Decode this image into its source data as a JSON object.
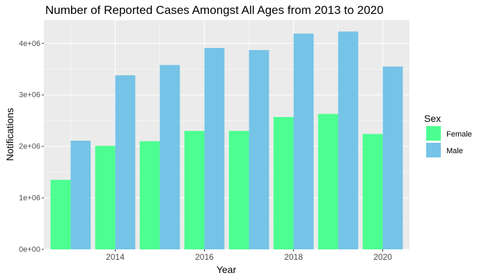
{
  "chart_data": {
    "type": "bar",
    "title": "Number of Reported Cases Amongst All Ages from 2013 to 2020",
    "xlabel": "Year",
    "ylabel": "Notifications",
    "x": [
      2013,
      2014,
      2015,
      2016,
      2017,
      2018,
      2019,
      2020
    ],
    "x_ticks": [
      2014,
      2016,
      2018,
      2020
    ],
    "x_tick_labels": [
      "2014",
      "2016",
      "2018",
      "2020"
    ],
    "y_ticks": [
      0,
      1000000,
      2000000,
      3000000,
      4000000
    ],
    "y_tick_labels": [
      "0e+00",
      "1e+06",
      "2e+06",
      "3e+06",
      "4e+06"
    ],
    "xlim": [
      2012.4,
      2020.6
    ],
    "ylim": [
      0,
      4450000
    ],
    "grid": true,
    "legend": {
      "title": "Sex",
      "placement": "right"
    },
    "series": [
      {
        "name": "Female",
        "color": "#4dff91",
        "values": [
          1350000,
          2010000,
          2100000,
          2300000,
          2300000,
          2570000,
          2630000,
          2240000
        ]
      },
      {
        "name": "Male",
        "color": "#75c3e6",
        "values": [
          2110000,
          3380000,
          3580000,
          3910000,
          3870000,
          4190000,
          4230000,
          3550000
        ]
      }
    ]
  }
}
